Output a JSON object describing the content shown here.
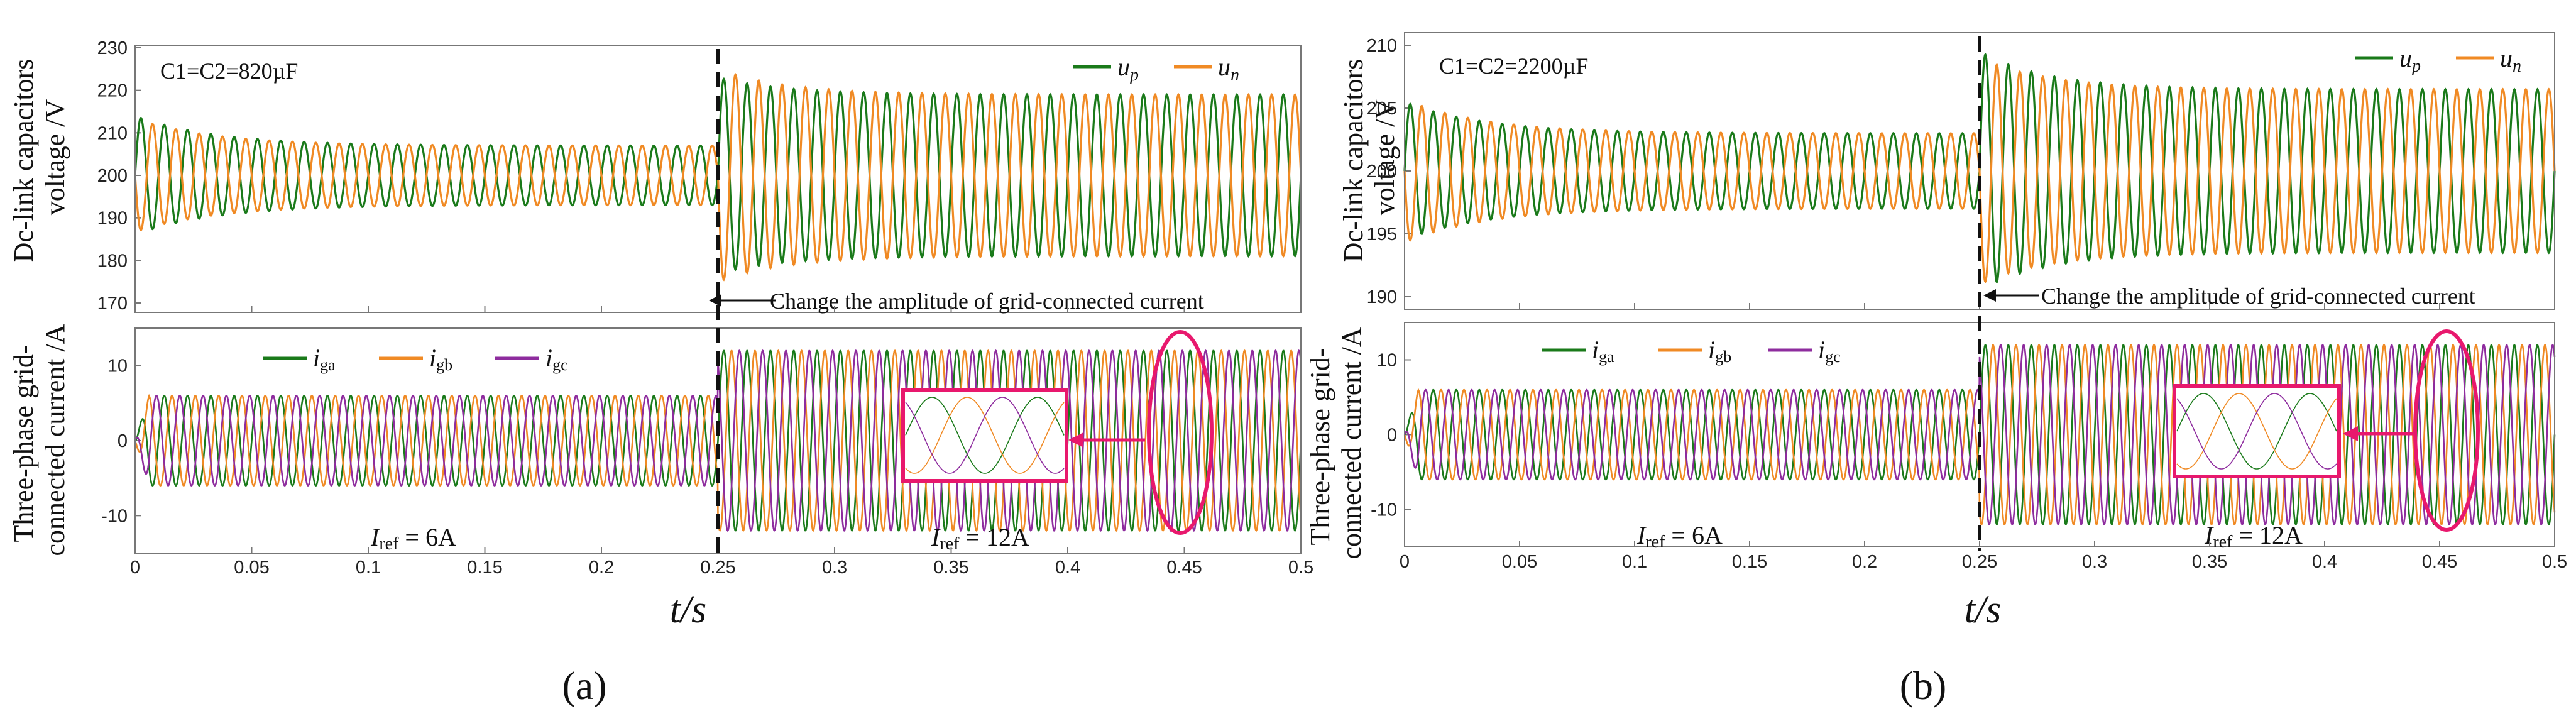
{
  "chart_data": [
    {
      "panel": "(a)",
      "type": "line",
      "xlabel": "t/s",
      "xlim": [
        0,
        0.5
      ],
      "xticks": [
        "0",
        "0.05",
        "0.1",
        "0.15",
        "0.2",
        "0.25",
        "0.3",
        "0.35",
        "0.4",
        "0.45",
        "0.5"
      ],
      "event": {
        "t": 0.25,
        "text": "Change the amplitude of grid-connected current"
      },
      "top": {
        "ylabel": [
          "Dc-link capacitors",
          "voltage /V"
        ],
        "ylim": [
          170,
          230
        ],
        "yticks": [
          "230",
          "220",
          "210",
          "200",
          "190",
          "180",
          "170"
        ],
        "annotation": "C1=C2=820µF",
        "legend": [
          "u",
          "p",
          "u",
          "n"
        ],
        "series": [
          {
            "name": "u_p",
            "color": "#1a7a1a",
            "mean": 200,
            "freq_hz": 100,
            "phase_deg": 0,
            "amp_before": 7,
            "amp_after": 19,
            "peak_start": 214,
            "dip_at_step": 177
          },
          {
            "name": "u_n",
            "color": "#f08a24",
            "mean": 200,
            "freq_hz": 100,
            "phase_deg": 180,
            "amp_before": 7,
            "amp_after": 19,
            "peak_at_step": 225
          }
        ]
      },
      "bottom": {
        "ylabel": [
          "Three-phase grid-",
          "connected current /A"
        ],
        "ylim": [
          -15,
          15
        ],
        "yticks": [
          "10",
          "0",
          "-10"
        ],
        "legend": [
          "i",
          "ga",
          "i",
          "gb",
          "i",
          "gc"
        ],
        "iref_before": [
          "I",
          "ref",
          " = 6A"
        ],
        "iref_after": [
          "I",
          "ref",
          " = 12A"
        ],
        "series": [
          {
            "name": "i_ga",
            "color": "#1a7a1a",
            "freq_hz": 100,
            "phase_deg": 0,
            "amp_before": 6,
            "amp_after": 12
          },
          {
            "name": "i_gb",
            "color": "#f08a24",
            "freq_hz": 100,
            "phase_deg": -120,
            "amp_before": 6,
            "amp_after": 12
          },
          {
            "name": "i_gc",
            "color": "#8e2c9e",
            "freq_hz": 100,
            "phase_deg": 120,
            "amp_before": 6,
            "amp_after": 12
          }
        ],
        "zoom_window": {
          "t_start": 0.445,
          "t_end": 0.465
        }
      }
    },
    {
      "panel": "(b)",
      "type": "line",
      "xlabel": "t/s",
      "xlim": [
        0,
        0.5
      ],
      "xticks": [
        "0",
        "0.05",
        "0.1",
        "0.15",
        "0.2",
        "0.25",
        "0.3",
        "0.35",
        "0.4",
        "0.45",
        "0.5"
      ],
      "event": {
        "t": 0.25,
        "text": "Change the amplitude of grid-connected current"
      },
      "top": {
        "ylabel": [
          "Dc-link capacitors",
          "voltage /V"
        ],
        "ylim": [
          189,
          211
        ],
        "yticks": [
          "210",
          "205",
          "200",
          "195",
          "190"
        ],
        "annotation": "C1=C2=2200µF",
        "legend": [
          "u",
          "p",
          "u",
          "n"
        ],
        "series": [
          {
            "name": "u_p",
            "color": "#1a7a1a",
            "mean": 200,
            "freq_hz": 100,
            "phase_deg": 0,
            "amp_before": 3,
            "amp_after": 6.5,
            "peak_start": 205.5,
            "dip_at_step": 190.5
          },
          {
            "name": "u_n",
            "color": "#f08a24",
            "mean": 200,
            "freq_hz": 100,
            "phase_deg": 180,
            "amp_before": 3,
            "amp_after": 6.5,
            "peak_at_step": 209
          }
        ]
      },
      "bottom": {
        "ylabel": [
          "Three-phase grid-",
          "connected current /A"
        ],
        "ylim": [
          -15,
          15
        ],
        "yticks": [
          "10",
          "0",
          "-10"
        ],
        "legend": [
          "i",
          "ga",
          "i",
          "gb",
          "i",
          "gc"
        ],
        "iref_before": [
          "I",
          "ref",
          " = 6A"
        ],
        "iref_after": [
          "I",
          "ref",
          " = 12A"
        ],
        "series": [
          {
            "name": "i_ga",
            "color": "#1a7a1a",
            "freq_hz": 100,
            "phase_deg": 0,
            "amp_before": 6,
            "amp_after": 12
          },
          {
            "name": "i_gb",
            "color": "#f08a24",
            "freq_hz": 100,
            "phase_deg": -120,
            "amp_before": 6,
            "amp_after": 12
          },
          {
            "name": "i_gc",
            "color": "#8e2c9e",
            "freq_hz": 100,
            "phase_deg": 120,
            "amp_before": 6,
            "amp_after": 12
          }
        ],
        "zoom_window": {
          "t_start": 0.445,
          "t_end": 0.465
        }
      }
    }
  ],
  "colors": {
    "highlight": "#e8186d",
    "event_line": "#111111",
    "frame": "#777777"
  }
}
